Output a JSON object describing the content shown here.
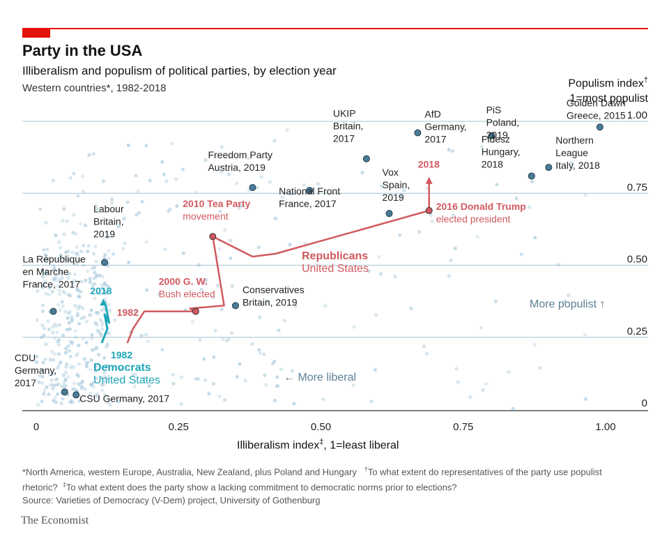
{
  "header": {
    "title": "Party in the USA",
    "subtitle": "Illiberalism and populism of political parties, by election year",
    "scope": "Western countries*, 1982-2018"
  },
  "axes": {
    "y_title": "Populism index",
    "y_title_mark": "†",
    "y_note": "1=most populist",
    "x_title": "Illiberalism index",
    "x_title_mark": "‡",
    "x_note": ", 1=least liberal"
  },
  "footnotes": {
    "line1": "*North America, western Europe, Australia, New Zealand, plus Poland and Hungary",
    "dagger": "†",
    "line1b": "To what extent do representatives of the party use populist rhetoric?",
    "ddagger": "‡",
    "line2": "To what extent does the party show a lacking commitment to democratic norms prior to elections?",
    "source": "Source: Varieties of Democracy (V-Dem) project, University of Gothenburg"
  },
  "brand": "The Economist",
  "colors": {
    "accent_red": "#e3120b",
    "republicans": "#d0595f",
    "democrats": "#1fa6b8",
    "dots": "#a9c9dc",
    "labelled_dot": "#4d7c97",
    "grid": "#b7ccd8"
  },
  "chart_data": {
    "type": "scatter",
    "title": "Party in the USA",
    "xlabel": "Illiberalism index‡, 1=least liberal",
    "ylabel": "Populism index† 1=most populist",
    "xlim": [
      0,
      1.0
    ],
    "ylim": [
      0,
      1.0
    ],
    "x_ticks": [
      {
        "v": 0,
        "label": "0"
      },
      {
        "v": 0.25,
        "label": "0.25"
      },
      {
        "v": 0.5,
        "label": "0.50"
      },
      {
        "v": 0.75,
        "label": "0.75"
      },
      {
        "v": 1.0,
        "label": "1.00"
      }
    ],
    "y_ticks": [
      {
        "v": 0,
        "label": "0"
      },
      {
        "v": 0.25,
        "label": "0.25"
      },
      {
        "v": 0.5,
        "label": "0.50"
      },
      {
        "v": 0.75,
        "label": "0.75"
      },
      {
        "v": 1.0,
        "label": "1.00"
      }
    ],
    "grid": true,
    "labelled_parties": [
      {
        "lines": [
          "PiS",
          "Poland,",
          "2019"
        ],
        "x": 0.8,
        "y": 0.95
      },
      {
        "lines": [
          "Golden Dawn",
          "Greece, 2015"
        ],
        "x": 0.99,
        "y": 0.98
      },
      {
        "lines": [
          "AfD",
          "Germany,",
          "2017"
        ],
        "x": 0.67,
        "y": 0.96
      },
      {
        "lines": [
          "UKIP",
          "Britain,",
          "2017"
        ],
        "x": 0.58,
        "y": 0.87
      },
      {
        "lines": [
          "Fidesz",
          "Hungary,",
          "2018"
        ],
        "x": 0.87,
        "y": 0.81
      },
      {
        "lines": [
          "Northern",
          "League",
          "Italy, 2018"
        ],
        "x": 0.9,
        "y": 0.84
      },
      {
        "lines": [
          "Freedom Party",
          "Austria, 2019"
        ],
        "x": 0.38,
        "y": 0.77
      },
      {
        "lines": [
          "National Front",
          "France, 2017"
        ],
        "x": 0.48,
        "y": 0.76
      },
      {
        "lines": [
          "Vox",
          "Spain,",
          "2019"
        ],
        "x": 0.62,
        "y": 0.68
      },
      {
        "lines": [
          "Labour",
          "Britain,",
          "2019"
        ],
        "x": 0.12,
        "y": 0.51
      },
      {
        "lines": [
          "La République",
          "en Marche",
          "France, 2017"
        ],
        "x": 0.03,
        "y": 0.34
      },
      {
        "lines": [
          "Conservatives",
          "Britain, 2019"
        ],
        "x": 0.35,
        "y": 0.36
      },
      {
        "lines": [
          "CDU",
          "Germany,",
          "2017"
        ],
        "x": 0.05,
        "y": 0.06
      },
      {
        "lines": [
          "CSU Germany, 2017"
        ],
        "x": 0.07,
        "y": 0.05
      }
    ],
    "series": [
      {
        "name": "Republicans United States",
        "points": [
          {
            "x": 0.16,
            "y": 0.23
          },
          {
            "x": 0.17,
            "y": 0.28
          },
          {
            "x": 0.19,
            "y": 0.34
          },
          {
            "x": 0.28,
            "y": 0.34
          },
          {
            "x": 0.27,
            "y": 0.35
          },
          {
            "x": 0.33,
            "y": 0.36
          },
          {
            "x": 0.31,
            "y": 0.6
          },
          {
            "x": 0.38,
            "y": 0.53
          },
          {
            "x": 0.42,
            "y": 0.54
          },
          {
            "x": 0.69,
            "y": 0.69
          },
          {
            "x": 0.69,
            "y": 0.79
          }
        ],
        "start_label": "1982",
        "end_label": "2018",
        "annotations": [
          {
            "text": [
              "2000 G. W.",
              "Bush elected"
            ],
            "x": 0.28,
            "y": 0.34
          },
          {
            "text": [
              "2010 Tea Party",
              "movement"
            ],
            "x": 0.31,
            "y": 0.6
          },
          {
            "text": [
              "2016 Donald Trump",
              "elected president"
            ],
            "x": 0.69,
            "y": 0.69
          }
        ]
      },
      {
        "name": "Democrats United States",
        "points": [
          {
            "x": 0.115,
            "y": 0.23
          },
          {
            "x": 0.125,
            "y": 0.28
          },
          {
            "x": 0.12,
            "y": 0.33
          },
          {
            "x": 0.128,
            "y": 0.3
          },
          {
            "x": 0.122,
            "y": 0.36
          },
          {
            "x": 0.118,
            "y": 0.37
          }
        ],
        "start_label": "1982",
        "end_label": "2018"
      }
    ],
    "annotations": [
      {
        "text": "Republicans",
        "sub": "United States"
      },
      {
        "text": "Democrats",
        "sub": "United States"
      },
      {
        "text": "More populist ↑"
      },
      {
        "text": "← More liberal"
      }
    ]
  }
}
